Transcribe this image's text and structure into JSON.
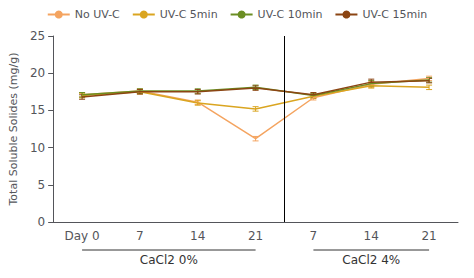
{
  "chart_data": {
    "type": "line",
    "ylabel": "Total Soluble Solides (mg/g)",
    "categories": [
      "Day 0",
      "7",
      "14",
      "21",
      "7",
      "14",
      "21"
    ],
    "series": [
      {
        "name": "No UV-C",
        "color": "#F4A460",
        "values": [
          17.1,
          17.6,
          16.1,
          11.2,
          16.7,
          18.5,
          19.3
        ],
        "errors": [
          0.3,
          0.3,
          0.3,
          0.3,
          0.3,
          0.4,
          0.3
        ]
      },
      {
        "name": "UV-C 5min",
        "color": "#DAA520",
        "values": [
          17.0,
          17.5,
          16.0,
          15.2,
          16.9,
          18.3,
          18.1
        ],
        "errors": [
          0.3,
          0.3,
          0.3,
          0.3,
          0.3,
          0.3,
          0.3
        ]
      },
      {
        "name": "UV-C 10min",
        "color": "#6B8E23",
        "values": [
          17.1,
          17.6,
          17.6,
          18.1,
          17.0,
          18.6,
          19.1
        ],
        "errors": [
          0.3,
          0.3,
          0.3,
          0.3,
          0.3,
          0.4,
          0.3
        ]
      },
      {
        "name": "UV-C 15min",
        "color": "#8B4513",
        "values": [
          16.8,
          17.5,
          17.5,
          18.0,
          17.1,
          18.8,
          19.0
        ],
        "errors": [
          0.3,
          0.3,
          0.3,
          0.3,
          0.3,
          0.4,
          0.3
        ]
      }
    ],
    "groups": [
      {
        "label": "CaCl2 0%",
        "count": 4
      },
      {
        "label": "CaCl2 4%",
        "count": 3
      }
    ],
    "ylim": [
      0,
      25
    ],
    "yticks": [
      0,
      5,
      10,
      15,
      20,
      25
    ],
    "grid": false,
    "legend": "top"
  }
}
